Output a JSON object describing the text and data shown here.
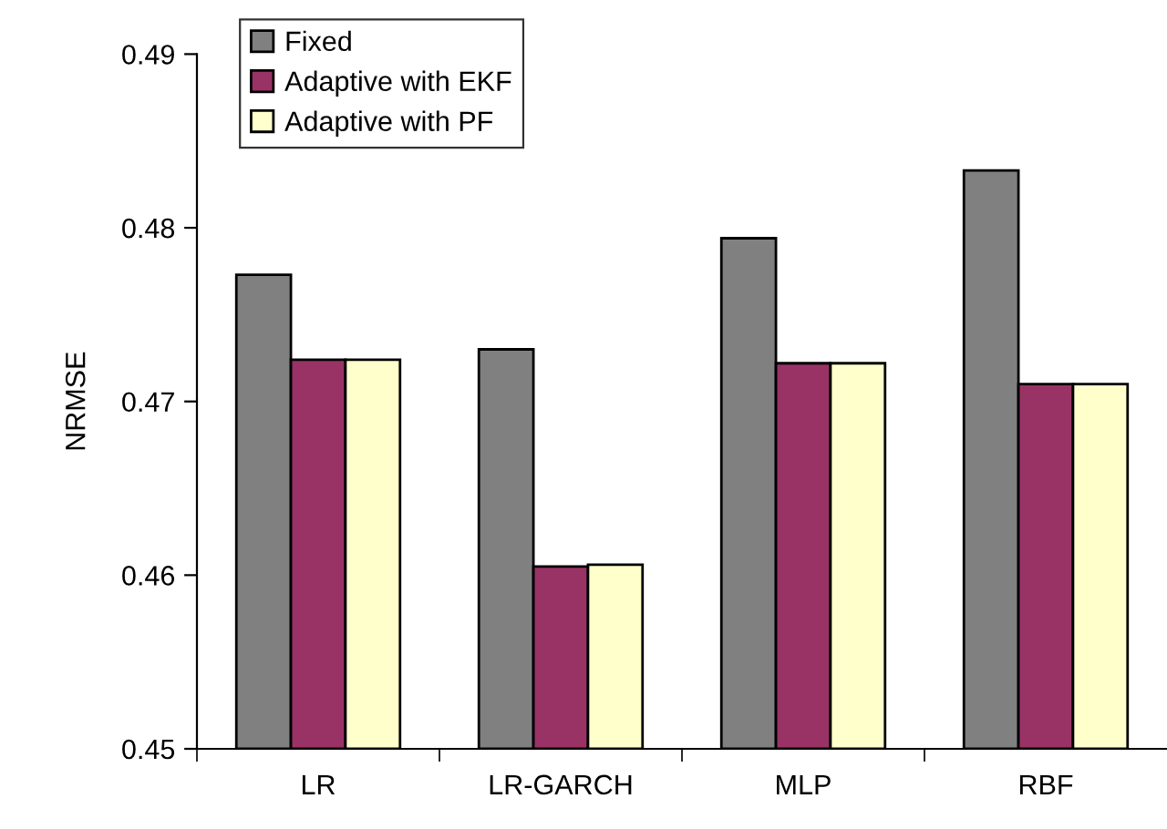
{
  "chart_data": {
    "type": "bar",
    "ylabel": "NRMSE",
    "categories": [
      "LR",
      "LR-GARCH",
      "MLP",
      "RBF"
    ],
    "series": [
      {
        "name": "Fixed",
        "color": "#808080",
        "values": [
          0.4773,
          0.473,
          0.4794,
          0.4833
        ]
      },
      {
        "name": "Adaptive with EKF",
        "color": "#993366",
        "values": [
          0.4724,
          0.4605,
          0.4722,
          0.471
        ]
      },
      {
        "name": "Adaptive with PF",
        "color": "#ffffcc",
        "values": [
          0.4724,
          0.4606,
          0.4722,
          0.471
        ]
      }
    ],
    "ylim": [
      0.45,
      0.49
    ],
    "yticks": [
      0.45,
      0.46,
      0.47,
      0.48,
      0.49
    ],
    "grid": false,
    "legend": "top left"
  }
}
